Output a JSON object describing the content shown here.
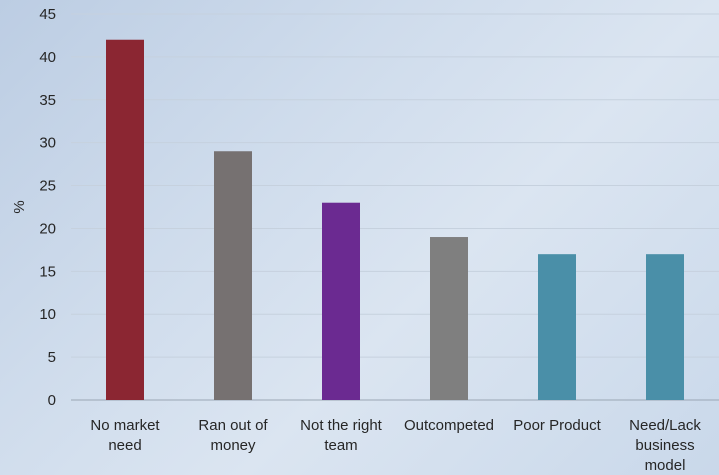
{
  "chart_data": {
    "type": "bar",
    "categories": [
      [
        "No market",
        "need"
      ],
      [
        "Ran out of",
        "money"
      ],
      [
        "Not the right",
        "team"
      ],
      [
        "Outcompeted"
      ],
      [
        "Poor Product"
      ],
      [
        "Need/Lack",
        "business",
        "model"
      ]
    ],
    "values": [
      42,
      29,
      23,
      19,
      17,
      17
    ],
    "colors": [
      "#8b2632",
      "#767171",
      "#6b2a91",
      "#7f7f7f",
      "#4a8fa8",
      "#4a8fa8"
    ],
    "title": "",
    "xlabel": "",
    "ylabel": "%",
    "ylim": [
      0,
      45
    ],
    "yticks": [
      0,
      5,
      10,
      15,
      20,
      25,
      30,
      35,
      40,
      45
    ],
    "grid": true,
    "legend": "none"
  }
}
